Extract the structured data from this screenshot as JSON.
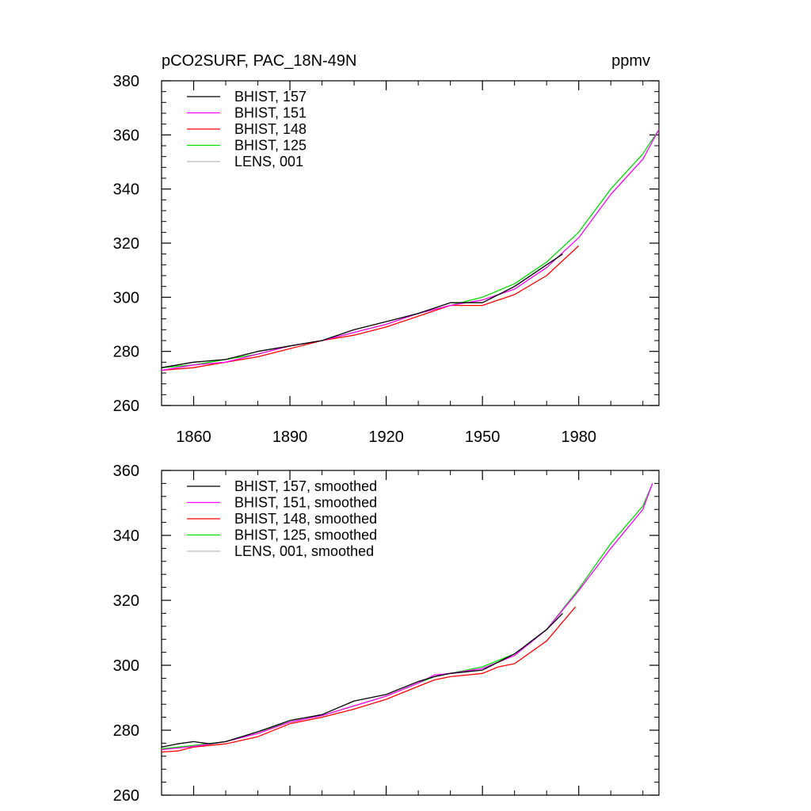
{
  "chart_data": [
    {
      "type": "line",
      "title": "pCO2SURF, PAC_18N-49N",
      "units": "ppmv",
      "xlim": [
        1850,
        2005
      ],
      "ylim": [
        260,
        380
      ],
      "x_ticks": [
        1860,
        1890,
        1920,
        1950,
        1980
      ],
      "y_ticks": [
        260,
        280,
        300,
        320,
        340,
        360,
        380
      ],
      "legend_position": "top-left",
      "grid": false,
      "series": [
        {
          "name": "BHIST, 157",
          "color": "#000000",
          "x": [
            1850,
            1860,
            1870,
            1880,
            1890,
            1900,
            1910,
            1920,
            1930,
            1940,
            1950,
            1960,
            1970,
            1975
          ],
          "y": [
            274,
            276,
            277,
            280,
            282,
            284,
            288,
            291,
            294,
            298,
            298,
            304,
            312,
            316
          ]
        },
        {
          "name": "BHIST, 151",
          "color": "#ff00ff",
          "x": [
            1850,
            1860,
            1870,
            1880,
            1890,
            1900,
            1910,
            1920,
            1930,
            1940,
            1950,
            1960,
            1970,
            1980,
            1990,
            2000,
            2005
          ],
          "y": [
            273,
            275,
            276,
            279,
            282,
            284,
            287,
            290,
            294,
            297,
            299,
            303,
            311,
            322,
            338,
            351,
            362
          ]
        },
        {
          "name": "BHIST, 148",
          "color": "#ff0000",
          "x": [
            1850,
            1860,
            1870,
            1880,
            1890,
            1900,
            1910,
            1920,
            1930,
            1940,
            1950,
            1955,
            1960,
            1970,
            1980
          ],
          "y": [
            273,
            274,
            276,
            278,
            281,
            284,
            286,
            289,
            293,
            297,
            297,
            299,
            301,
            308,
            319
          ]
        },
        {
          "name": "BHIST, 125",
          "color": "#00dd00",
          "x": [
            1850,
            1860,
            1870,
            1880,
            1890,
            1900,
            1910,
            1920,
            1930,
            1940,
            1950,
            1960,
            1970,
            1980,
            1990,
            2000,
            2005
          ],
          "y": [
            274,
            275,
            277,
            279,
            282,
            284,
            287,
            290,
            294,
            297,
            300,
            305,
            313,
            324,
            340,
            353,
            362
          ]
        },
        {
          "name": "LENS, 001",
          "color": "#bbbbbb",
          "x": [],
          "y": []
        }
      ]
    },
    {
      "type": "line",
      "title": "",
      "xlim": [
        1850,
        2005
      ],
      "ylim": [
        260,
        360
      ],
      "x_ticks": [
        1860,
        1890,
        1920,
        1950,
        1980
      ],
      "y_ticks": [
        260,
        280,
        300,
        320,
        340,
        360
      ],
      "legend_position": "top-left",
      "grid": false,
      "series": [
        {
          "name": "BHIST, 157, smoothed",
          "color": "#000000",
          "x": [
            1850,
            1855,
            1860,
            1865,
            1870,
            1880,
            1890,
            1900,
            1910,
            1920,
            1930,
            1935,
            1940,
            1950,
            1960,
            1970,
            1975
          ],
          "y": [
            274.8,
            275.8,
            276.5,
            275.8,
            276.5,
            279.5,
            283,
            284.8,
            289,
            291,
            295,
            296.5,
            297.5,
            298.5,
            303.5,
            311,
            316
          ]
        },
        {
          "name": "BHIST, 151, smoothed",
          "color": "#ff00ff",
          "x": [
            1850,
            1860,
            1870,
            1880,
            1890,
            1900,
            1910,
            1920,
            1930,
            1935,
            1940,
            1950,
            1960,
            1970,
            1980,
            1990,
            2000,
            2003
          ],
          "y": [
            274,
            275,
            276.5,
            279,
            282.5,
            284.5,
            287.5,
            290.5,
            294.5,
            297,
            297.5,
            299,
            303,
            311,
            323,
            336,
            348,
            356
          ]
        },
        {
          "name": "BHIST, 148, smoothed",
          "color": "#ff0000",
          "x": [
            1850,
            1855,
            1860,
            1870,
            1880,
            1890,
            1900,
            1910,
            1920,
            1930,
            1935,
            1940,
            1950,
            1955,
            1960,
            1970,
            1979
          ],
          "y": [
            273.3,
            273.6,
            274.8,
            275.8,
            278,
            282,
            284,
            286.5,
            289.5,
            293.5,
            295.5,
            296.5,
            297.5,
            299.5,
            300.5,
            307.5,
            318
          ]
        },
        {
          "name": "BHIST, 125, smoothed",
          "color": "#00dd00",
          "x": [
            1850,
            1860,
            1870,
            1880,
            1890,
            1900,
            1910,
            1920,
            1930,
            1935,
            1940,
            1950,
            1960,
            1970,
            1980,
            1990,
            2000,
            2003
          ],
          "y": [
            274.3,
            275.3,
            276.5,
            279.5,
            282.5,
            284.5,
            287.5,
            290.5,
            294.5,
            296.5,
            297.5,
            299.5,
            303.5,
            311,
            323.5,
            337.5,
            349,
            356
          ]
        },
        {
          "name": "LENS, 001, smoothed",
          "color": "#bbbbbb",
          "x": [],
          "y": []
        }
      ]
    }
  ]
}
